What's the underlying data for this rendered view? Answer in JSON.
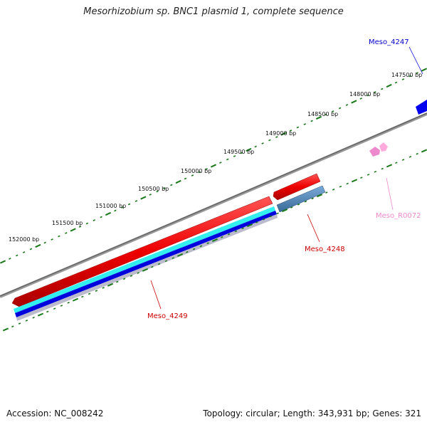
{
  "title": "Mesorhizobium sp. BNC1 plasmid 1, complete sequence",
  "footer": {
    "accession": "Accession: NC_008242",
    "summary": "Topology: circular; Length: 343,931 bp; Genes: 321"
  },
  "ruler": {
    "labels": [
      "147500 bp",
      "148000 bp",
      "148500 bp",
      "149000 bp",
      "149500 bp",
      "150000 bp",
      "150500 bp",
      "151000 bp",
      "151500 bp",
      "152000 bp"
    ]
  },
  "features": [
    {
      "label": "Meso_4247",
      "color": "#0000cc"
    },
    {
      "label": "Meso_4248",
      "color": "#cc0000"
    },
    {
      "label": "Meso_4249",
      "color": "#cc0000"
    },
    {
      "label": "Meso_R0072",
      "color": "#ee88cc"
    }
  ]
}
